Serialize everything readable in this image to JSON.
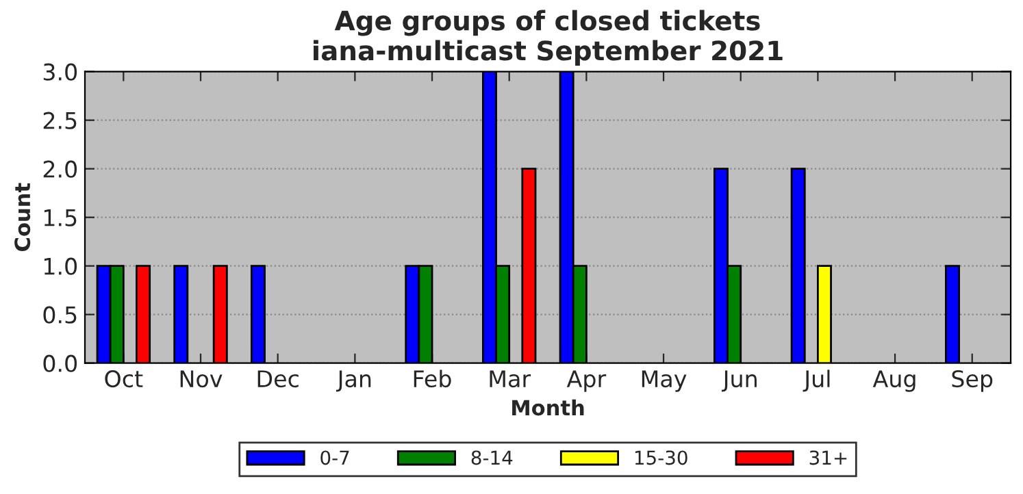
{
  "chart_data": {
    "type": "bar",
    "title": "Age groups of closed tickets\niana-multicast September 2021",
    "xlabel": "Month",
    "ylabel": "Count",
    "categories": [
      "Oct",
      "Nov",
      "Dec",
      "Jan",
      "Feb",
      "Mar",
      "Apr",
      "May",
      "Jun",
      "Jul",
      "Aug",
      "Sep"
    ],
    "series": [
      {
        "name": "0-7",
        "color": "#0000ff",
        "values": [
          1,
          1,
          1,
          0,
          1,
          3,
          3,
          0,
          2,
          2,
          0,
          1
        ]
      },
      {
        "name": "8-14",
        "color": "#008000",
        "values": [
          1,
          0,
          0,
          0,
          1,
          1,
          1,
          0,
          1,
          0,
          0,
          0
        ]
      },
      {
        "name": "15-30",
        "color": "#ffff00",
        "values": [
          0,
          0,
          0,
          0,
          0,
          0,
          0,
          0,
          0,
          1,
          0,
          0
        ]
      },
      {
        "name": "31+",
        "color": "#ff0000",
        "values": [
          1,
          1,
          0,
          0,
          0,
          2,
          0,
          0,
          0,
          0,
          0,
          0
        ]
      }
    ],
    "ylim": [
      0,
      3
    ],
    "yticks": [
      {
        "value": 0,
        "label": "0.0"
      },
      {
        "value": 0.5,
        "label": "0.5"
      },
      {
        "value": 1,
        "label": "1.0"
      },
      {
        "value": 1.5,
        "label": "1.5"
      },
      {
        "value": 2,
        "label": "2.0"
      },
      {
        "value": 2.5,
        "label": "2.5"
      },
      {
        "value": 3,
        "label": "3.0"
      }
    ],
    "grid": "y",
    "legend": "bottom"
  }
}
